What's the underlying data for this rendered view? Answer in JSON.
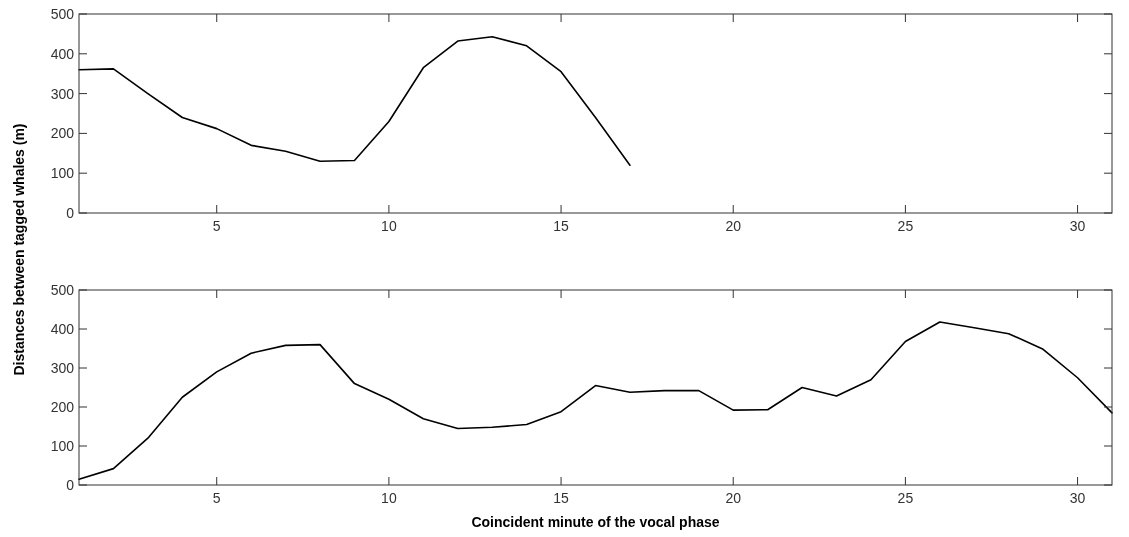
{
  "chart_data": [
    {
      "type": "line",
      "ylabel": "Distances between tagged whales (m)",
      "x": [
        1,
        2,
        3,
        4,
        5,
        6,
        7,
        8,
        9,
        10,
        11,
        12,
        13,
        14,
        15,
        16,
        17
      ],
      "series": [
        {
          "color": "#000000",
          "values": [
            360,
            362,
            300,
            240,
            212,
            170,
            155,
            130,
            132,
            230,
            365,
            432,
            443,
            420,
            355,
            240,
            120
          ]
        }
      ],
      "xlim": [
        1,
        31
      ],
      "xticks": [
        5,
        10,
        15,
        20,
        25,
        30
      ],
      "ylim": [
        0,
        500
      ],
      "yticks": [
        0,
        100,
        200,
        300,
        400,
        500
      ],
      "grid": false
    },
    {
      "type": "line",
      "xlabel": "Coincident minute of the vocal phase",
      "x": [
        1,
        2,
        3,
        4,
        5,
        6,
        7,
        8,
        9,
        10,
        11,
        12,
        13,
        14,
        15,
        16,
        17,
        18,
        19,
        20,
        21,
        22,
        23,
        24,
        25,
        26,
        27,
        28,
        29,
        30,
        31
      ],
      "series": [
        {
          "color": "#000000",
          "values": [
            15,
            42,
            120,
            225,
            290,
            338,
            358,
            360,
            260,
            220,
            170,
            145,
            148,
            155,
            188,
            255,
            238,
            242,
            242,
            192,
            193,
            250,
            228,
            270,
            368,
            418,
            403,
            388,
            348,
            275,
            185
          ]
        }
      ],
      "xlim": [
        1,
        31
      ],
      "xticks": [
        5,
        10,
        15,
        20,
        25,
        30
      ],
      "ylim": [
        0,
        500
      ],
      "yticks": [
        0,
        100,
        200,
        300,
        400,
        500
      ],
      "grid": false
    }
  ]
}
